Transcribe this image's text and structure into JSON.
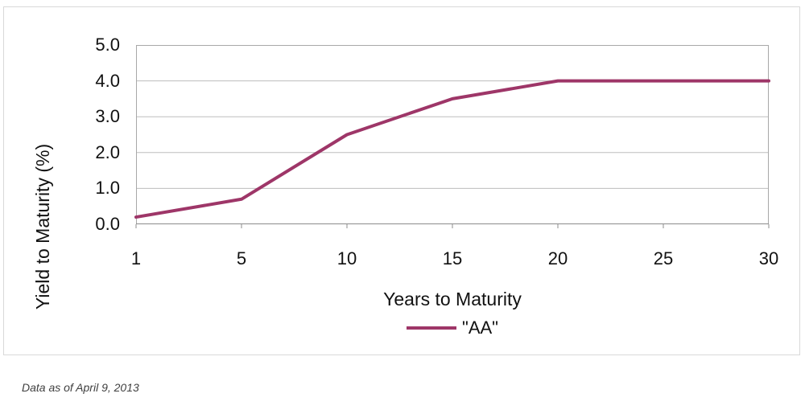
{
  "chart_data": {
    "type": "line",
    "categories": [
      1,
      5,
      10,
      15,
      20,
      25,
      30
    ],
    "series": [
      {
        "name": "\"AA\"",
        "values": [
          0.2,
          0.7,
          2.5,
          3.5,
          4.0,
          4.0,
          4.0
        ]
      }
    ],
    "title": "",
    "xlabel": "Years to Maturity",
    "ylabel": "Yield to Maturity (%)",
    "ylim": [
      0,
      5
    ],
    "y_tick_step": 1.0,
    "y_tick_labels": [
      "0.0",
      "1.0",
      "2.0",
      "3.0",
      "4.0",
      "5.0"
    ],
    "x_tick_labels": [
      "1",
      "5",
      "10",
      "15",
      "20",
      "25",
      "30"
    ],
    "grid": "horizontal",
    "legend_position": "bottom-center",
    "colors": {
      "series_line": "#9e3668",
      "gridline": "#bdbdbd",
      "plot_border": "#a8a8a8",
      "axis_line": "#8c8c8c",
      "container_border": "#d9d9d9",
      "text": "#111111",
      "footer_text": "#3f3f3f"
    }
  },
  "footer": {
    "note": "Data as of April 9, 2013"
  }
}
